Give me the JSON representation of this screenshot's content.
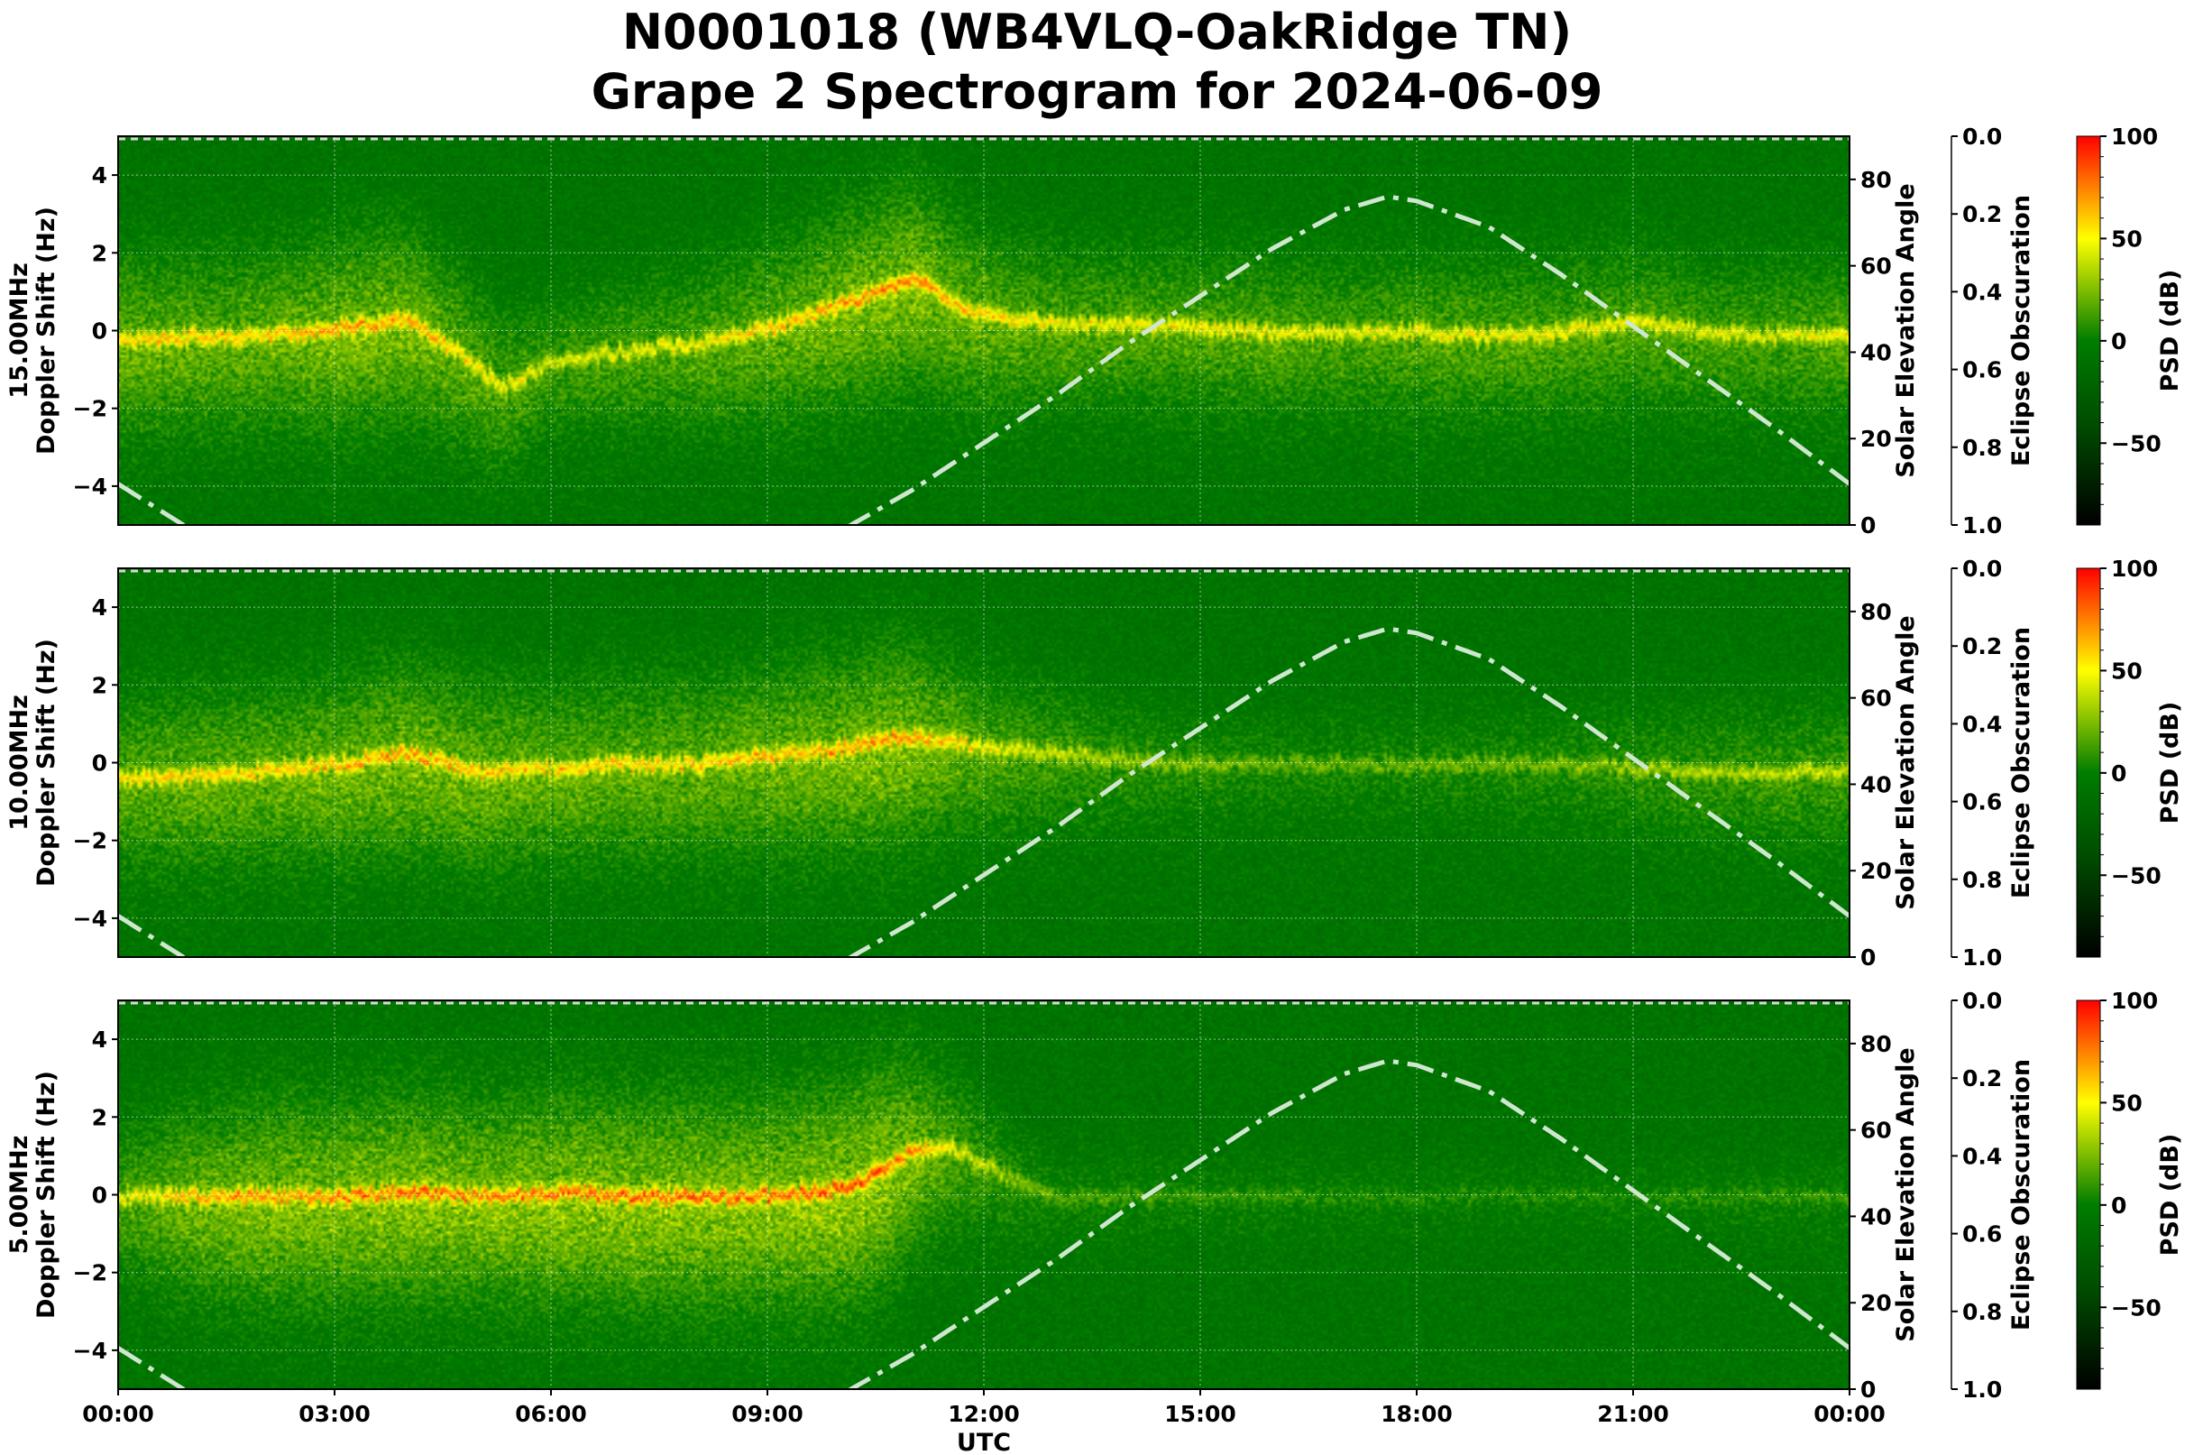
{
  "title": {
    "line1": "N0001018 (WB4VLQ-OakRidge TN)",
    "line2": "Grape 2 Spectrogram for 2024-06-09"
  },
  "chart_data": {
    "type": "heatmap",
    "xlabel": "UTC",
    "x_ticks": [
      "00:00",
      "03:00",
      "06:00",
      "09:00",
      "12:00",
      "15:00",
      "18:00",
      "21:00",
      "00:00"
    ],
    "y_ticks": [
      "4",
      "2",
      "0",
      "−2",
      "−4"
    ],
    "y_tick_values": [
      4,
      2,
      0,
      -2,
      -4
    ],
    "ylim": [
      -5,
      5
    ],
    "ylabel": "Doppler Shift (Hz)",
    "elevation_axis": {
      "label": "Solar Elevation Angle",
      "ticks": [
        "80",
        "60",
        "40",
        "20",
        "0"
      ],
      "tick_values": [
        80,
        60,
        40,
        20,
        0
      ],
      "lim": [
        0,
        90
      ],
      "line_color": "#cfe6cf",
      "hours": [
        0,
        1,
        2,
        9,
        10,
        11,
        12,
        13,
        14,
        15,
        16,
        17,
        17.6,
        18,
        19,
        20,
        21,
        22,
        23,
        24
      ],
      "values": [
        9.5,
        -1,
        -10,
        -8,
        -1.5,
        8,
        19,
        30,
        42,
        53,
        64,
        73,
        76,
        75,
        69,
        58,
        46,
        34,
        22,
        9.5
      ]
    },
    "eclipse_axis": {
      "label": "Eclipse Obscuration",
      "ticks": [
        "0.0",
        "0.2",
        "0.4",
        "0.6",
        "0.8",
        "1.0"
      ],
      "tick_values": [
        0,
        0.2,
        0.4,
        0.6,
        0.8,
        1.0
      ]
    },
    "colorbar": {
      "label": "PSD (dB)",
      "ticks": [
        "100",
        "50",
        "0",
        "−50"
      ],
      "tick_values": [
        100,
        50,
        0,
        -50
      ],
      "range": [
        -90,
        100
      ],
      "colors": [
        "#000000",
        "#004d00",
        "#007d00",
        "#ffff00",
        "#ff8000",
        "#ff0000"
      ]
    },
    "panels": [
      {
        "frequency": "15.00MHz",
        "trace_hours": [
          0,
          1,
          2,
          3,
          4,
          4.6,
          5.3,
          6,
          7,
          8,
          9,
          10,
          11,
          11.5,
          12,
          13,
          14,
          15,
          16,
          17,
          18,
          19,
          20,
          21,
          22,
          23,
          24
        ],
        "trace_doppler": [
          -0.2,
          -0.1,
          -0.1,
          0.1,
          0.3,
          -0.4,
          -1.4,
          -0.8,
          -0.5,
          -0.3,
          0.1,
          0.7,
          1.4,
          0.8,
          0.4,
          0.2,
          0.2,
          0.1,
          0,
          0,
          0,
          -0.1,
          0,
          0.3,
          0,
          -0.1,
          -0.1
        ],
        "trace_intensity": [
          0.7,
          0.7,
          0.7,
          0.8,
          0.8,
          0.7,
          0.6,
          0.5,
          0.55,
          0.6,
          0.7,
          0.8,
          0.85,
          0.75,
          0.7,
          0.6,
          0.6,
          0.6,
          0.6,
          0.55,
          0.6,
          0.6,
          0.6,
          0.6,
          0.55,
          0.55,
          0.6
        ]
      },
      {
        "frequency": "10.00MHz",
        "trace_hours": [
          0,
          1,
          2,
          3,
          4,
          5,
          6,
          7,
          8,
          9,
          10,
          10.8,
          11.5,
          12,
          13,
          14,
          15,
          16,
          18,
          20,
          22,
          24
        ],
        "trace_doppler": [
          -0.4,
          -0.3,
          -0.2,
          0,
          0.3,
          -0.2,
          -0.1,
          0,
          0,
          0.2,
          0.4,
          0.7,
          0.6,
          0.4,
          0.3,
          0.1,
          0,
          0,
          0,
          0,
          -0.2,
          -0.2
        ],
        "trace_intensity": [
          0.65,
          0.7,
          0.7,
          0.75,
          0.8,
          0.75,
          0.7,
          0.7,
          0.7,
          0.75,
          0.8,
          0.85,
          0.7,
          0.6,
          0.5,
          0.4,
          0.35,
          0.3,
          0.3,
          0.35,
          0.45,
          0.5
        ]
      },
      {
        "frequency": "5.00MHz",
        "trace_hours": [
          0,
          1,
          2,
          3,
          4,
          5,
          6,
          7,
          8,
          9,
          10,
          10.5,
          11,
          11.5,
          12,
          13,
          15,
          18,
          21,
          24
        ],
        "trace_doppler": [
          0,
          0,
          0,
          0,
          0.1,
          0,
          0.1,
          0,
          0,
          0,
          0.2,
          0.6,
          1.2,
          1.3,
          0.8,
          0,
          0,
          0,
          0,
          0
        ],
        "trace_intensity": [
          0.55,
          0.75,
          0.85,
          0.85,
          0.9,
          0.85,
          0.9,
          0.9,
          0.9,
          0.9,
          0.95,
          0.95,
          0.8,
          0.6,
          0.45,
          0.25,
          0.2,
          0.15,
          0.15,
          0.2
        ]
      }
    ]
  }
}
